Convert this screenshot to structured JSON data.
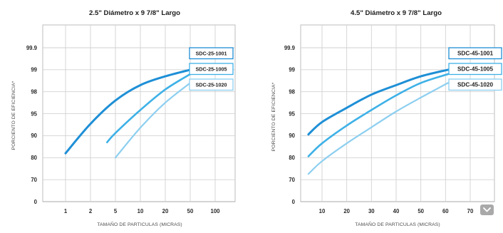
{
  "ui": {
    "scroll_button": {
      "icon": "chevron-down-icon",
      "background": "#a9a9a9"
    }
  },
  "chart_data": [
    {
      "type": "line",
      "title": "2.5\" Diámetro x 9 7/8\" Largo",
      "xlabel": "TAMAÑO DE PARTICULAS (MICRAS)",
      "ylabel": "PORCIENTO DE EFICIENCIA*",
      "x_ticks": [
        1,
        2,
        5,
        10,
        20,
        50,
        100
      ],
      "y_ticks": [
        0,
        70,
        80,
        90,
        95,
        98,
        99,
        99.9
      ],
      "ylim": [
        0,
        99.9
      ],
      "grid": true,
      "legend": "right",
      "series": [
        {
          "name": "SDC-25-1001",
          "color": "#1e8fd6",
          "x": [
            1,
            2,
            5,
            10,
            20,
            50
          ],
          "y": [
            82,
            92.7,
            96.8,
            98.3,
            98.7,
            99
          ]
        },
        {
          "name": "SDC-25-1005",
          "color": "#3eb1e7",
          "x": [
            4,
            5,
            10,
            20,
            50
          ],
          "y": [
            87,
            90.6,
            95.5,
            98.1,
            98.8
          ]
        },
        {
          "name": "SDC-25-1020",
          "color": "#8dcff0",
          "x": [
            5,
            10,
            20,
            50
          ],
          "y": [
            80,
            91.8,
            96.5,
            98.4
          ]
        }
      ]
    },
    {
      "type": "line",
      "title": "4.5\" Diámetro x 9 7/8\" Largo",
      "xlabel": "TAMAÑO DE PARTICULAS (MICRAS)",
      "ylabel": "PORCIENTO DE EFICIENCIA*",
      "x_ticks": [
        10,
        20,
        30,
        40,
        50,
        60,
        70
      ],
      "y_ticks": [
        0,
        70,
        80,
        90,
        95,
        98,
        99,
        99.9
      ],
      "ylim": [
        0,
        99.9
      ],
      "grid": true,
      "legend": "right",
      "series": [
        {
          "name": "SDC-45-1001",
          "color": "#1e8fd6",
          "x": [
            4.5,
            10,
            20,
            30,
            40,
            50,
            61
          ],
          "y": [
            90.3,
            93.1,
            95.8,
            97.6,
            98.3,
            98.7,
            99
          ]
        },
        {
          "name": "SDC-45-1005",
          "color": "#3eb1e7",
          "x": [
            4.5,
            10,
            20,
            30,
            40,
            50,
            61
          ],
          "y": [
            80.6,
            86.5,
            92.3,
            95.5,
            97.5,
            98.4,
            98.8
          ]
        },
        {
          "name": "SDC-45-1020",
          "color": "#8dcff0",
          "x": [
            4.5,
            10,
            20,
            30,
            40,
            50,
            61
          ],
          "y": [
            72.6,
            78.4,
            86.5,
            91.9,
            95.3,
            97.2,
            98.4
          ]
        }
      ]
    }
  ]
}
